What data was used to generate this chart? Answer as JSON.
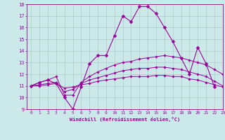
{
  "xlabel": "Windchill (Refroidissement éolien,°C)",
  "background_color": "#cce9e9",
  "grid_color": "#b0c8c8",
  "line_color": "#990099",
  "xlim": [
    -0.5,
    23
  ],
  "ylim": [
    9,
    18
  ],
  "xticks": [
    0,
    1,
    2,
    3,
    4,
    5,
    6,
    7,
    8,
    9,
    10,
    11,
    12,
    13,
    14,
    15,
    16,
    17,
    18,
    19,
    20,
    21,
    22,
    23
  ],
  "yticks": [
    9,
    10,
    11,
    12,
    13,
    14,
    15,
    16,
    17,
    18
  ],
  "lines": [
    {
      "x": [
        0,
        1,
        2,
        3,
        4,
        5,
        6,
        7,
        8,
        9,
        10,
        11,
        12,
        13,
        14,
        15,
        16,
        17,
        18,
        19,
        20,
        21,
        22
      ],
      "y": [
        11.0,
        11.3,
        11.5,
        11.2,
        10.0,
        9.0,
        10.9,
        12.9,
        13.6,
        13.6,
        15.3,
        17.0,
        16.5,
        17.8,
        17.8,
        17.2,
        16.0,
        14.8,
        13.4,
        12.0,
        14.3,
        12.9,
        10.9
      ],
      "marker": "D",
      "markersize": 2.5,
      "lw": 0.8
    },
    {
      "x": [
        0,
        1,
        2,
        3,
        4,
        5,
        6,
        7,
        8,
        9,
        10,
        11,
        12,
        13,
        14,
        15,
        16,
        17,
        18,
        19,
        20,
        21,
        22,
        23
      ],
      "y": [
        11.0,
        11.3,
        11.5,
        11.8,
        10.2,
        10.2,
        11.3,
        11.8,
        12.2,
        12.5,
        12.8,
        13.0,
        13.1,
        13.3,
        13.4,
        13.5,
        13.6,
        13.5,
        13.4,
        13.2,
        13.0,
        12.8,
        12.4,
        12.0
      ],
      "marker": "D",
      "markersize": 1.8,
      "lw": 0.7
    },
    {
      "x": [
        0,
        1,
        2,
        3,
        4,
        5,
        6,
        7,
        8,
        9,
        10,
        11,
        12,
        13,
        14,
        15,
        16,
        17,
        18,
        19,
        20,
        21,
        22,
        23
      ],
      "y": [
        11.0,
        11.1,
        11.2,
        11.3,
        10.5,
        10.7,
        11.2,
        11.5,
        11.7,
        11.9,
        12.1,
        12.3,
        12.4,
        12.5,
        12.5,
        12.6,
        12.6,
        12.5,
        12.4,
        12.2,
        12.0,
        11.8,
        11.4,
        11.0
      ],
      "marker": "D",
      "markersize": 1.8,
      "lw": 0.7
    },
    {
      "x": [
        0,
        1,
        2,
        3,
        4,
        5,
        6,
        7,
        8,
        9,
        10,
        11,
        12,
        13,
        14,
        15,
        16,
        17,
        18,
        19,
        20,
        21,
        22,
        23
      ],
      "y": [
        11.0,
        11.0,
        11.1,
        11.2,
        10.8,
        10.9,
        11.1,
        11.2,
        11.4,
        11.5,
        11.6,
        11.7,
        11.8,
        11.8,
        11.8,
        11.9,
        11.9,
        11.8,
        11.8,
        11.6,
        11.5,
        11.3,
        11.1,
        10.9
      ],
      "marker": "D",
      "markersize": 1.8,
      "lw": 0.7
    }
  ]
}
